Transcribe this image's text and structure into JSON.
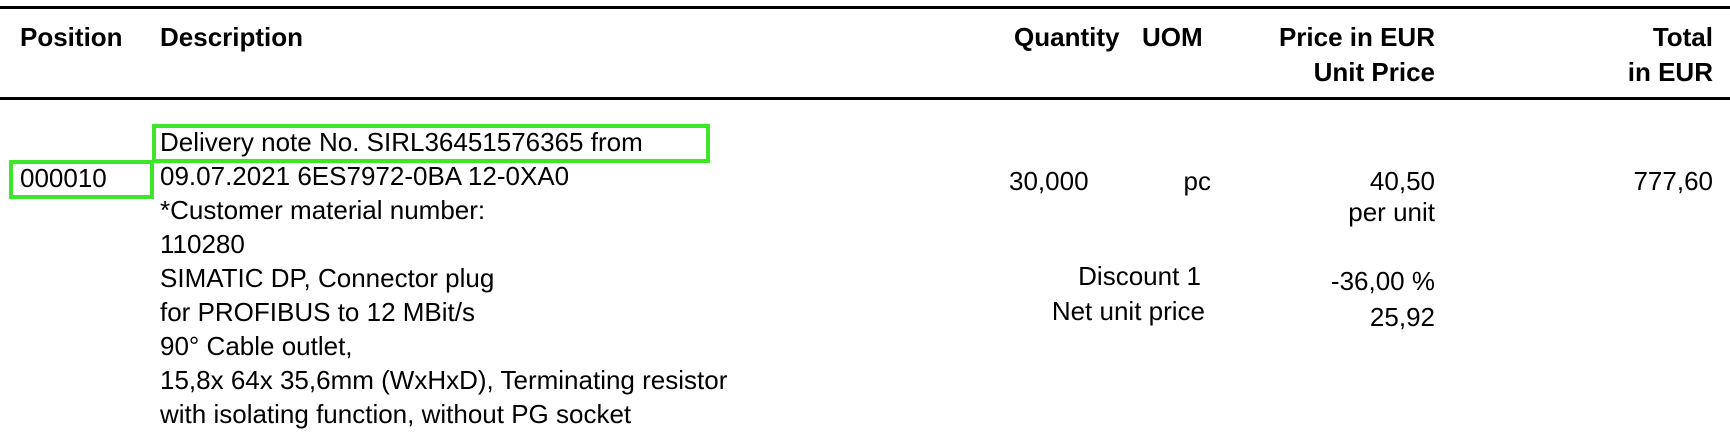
{
  "header": {
    "position": "Position",
    "description": "Description",
    "quantity": "Quantity",
    "uom": "UOM",
    "price_line1": "Price in EUR",
    "price_line2": "Unit Price",
    "total_line1": "Total",
    "total_line2": "in EUR"
  },
  "item": {
    "position": "000010",
    "description_lines": [
      "Delivery note No. SIRL36451576365 from",
      "09.07.2021 6ES7972-0BA 12-0XA0",
      "*Customer material number:",
      "110280",
      "SIMATIC DP, Connector plug",
      "for PROFIBUS to 12 MBit/s",
      "90° Cable outlet,",
      "15,8x 64x 35,6mm (WxHxD), Terminating resistor",
      "with isolating function, without PG socket"
    ],
    "quantity": "30,000",
    "uom": "pc",
    "unit_price": "40,50",
    "per_unit": "per unit",
    "total": "777,60",
    "discount_label": "Discount 1",
    "discount_value": "-36,00 %",
    "net_label": "Net unit price",
    "net_value": "25,92"
  },
  "highlight_color": "#3ee52b"
}
